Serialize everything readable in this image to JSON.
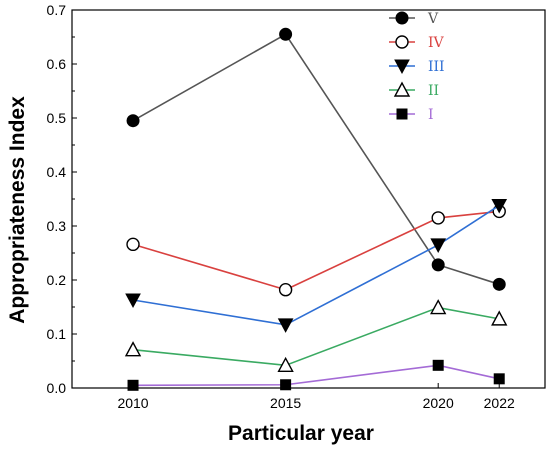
{
  "chart_data": {
    "type": "line",
    "x": [
      2010,
      2015,
      2020,
      2022
    ],
    "xlabel": "Particular year",
    "ylabel": "Appropriateness Index",
    "ylim": [
      0,
      0.7
    ],
    "yticks": [
      "0.0",
      "0.1",
      "0.2",
      "0.3",
      "0.4",
      "0.5",
      "0.6",
      "0.7"
    ],
    "xticks": [
      "2010",
      "2015",
      "2020",
      "2022"
    ],
    "grid": false,
    "legend_position": "top-right",
    "series": [
      {
        "name": "V",
        "color": "#555555",
        "marker": "circle-filled",
        "values": [
          0.495,
          0.655,
          0.228,
          0.192
        ]
      },
      {
        "name": "IV",
        "color": "#d9413f",
        "marker": "circle-open",
        "values": [
          0.266,
          0.182,
          0.315,
          0.327
        ]
      },
      {
        "name": "III",
        "color": "#2f6fd4",
        "marker": "triangle-down",
        "values": [
          0.163,
          0.117,
          0.265,
          0.338
        ]
      },
      {
        "name": "II",
        "color": "#3aaa62",
        "marker": "triangle-open",
        "values": [
          0.071,
          0.042,
          0.149,
          0.128
        ]
      },
      {
        "name": "I",
        "color": "#a46bd6",
        "marker": "square-filled",
        "values": [
          0.005,
          0.006,
          0.042,
          0.017
        ]
      }
    ]
  }
}
